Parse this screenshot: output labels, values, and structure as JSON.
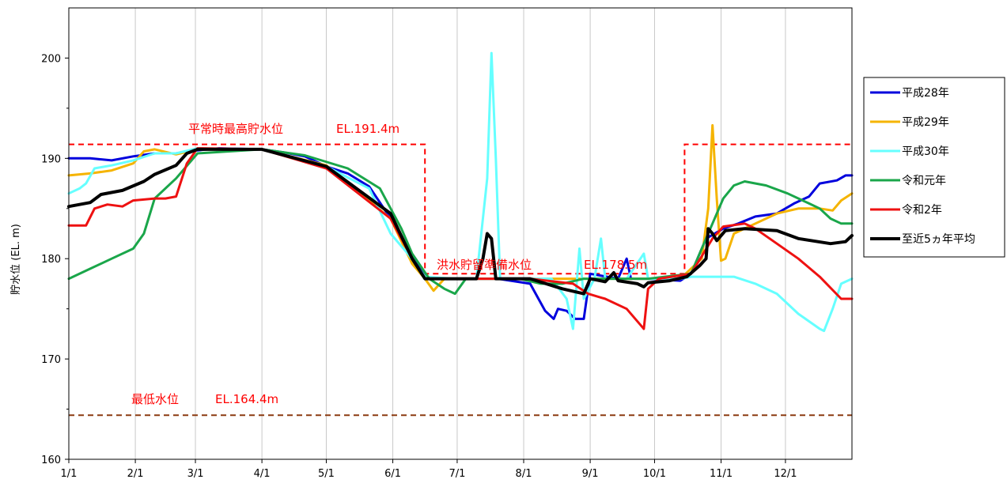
{
  "chart_data": {
    "type": "line",
    "ylabel": "貯水位 (EL. m)",
    "ylim": [
      160,
      205
    ],
    "yticks": [
      160,
      170,
      180,
      190,
      200
    ],
    "xlim": [
      0,
      365
    ],
    "xticks": [
      {
        "label": "1/1",
        "day": 0
      },
      {
        "label": "2/1",
        "day": 31
      },
      {
        "label": "3/1",
        "day": 59
      },
      {
        "label": "4/1",
        "day": 90
      },
      {
        "label": "5/1",
        "day": 120
      },
      {
        "label": "6/1",
        "day": 151
      },
      {
        "label": "7/1",
        "day": 181
      },
      {
        "label": "8/1",
        "day": 212
      },
      {
        "label": "9/1",
        "day": 243
      },
      {
        "label": "10/1",
        "day": 273
      },
      {
        "label": "11/1",
        "day": 304
      },
      {
        "label": "12/1",
        "day": 334
      }
    ],
    "grid": true,
    "legend_position": "right",
    "reference_lines": [
      {
        "label": "平常時最高貯水位",
        "value_label": "EL.191.4m",
        "color": "#ff0000",
        "points": [
          [
            0,
            191.4
          ],
          [
            166,
            191.4
          ],
          [
            166,
            178.5
          ],
          [
            287,
            178.5
          ],
          [
            287,
            191.4
          ],
          [
            365,
            191.4
          ]
        ]
      },
      {
        "label": "洪水貯留準備水位",
        "value_label": "EL.178.5m",
        "color": "#ff0000",
        "points": [
          [
            166,
            178.5
          ],
          [
            287,
            178.5
          ]
        ]
      },
      {
        "label": "最低水位",
        "value_label": "EL.164.4m",
        "color": "#8b3a10",
        "points": [
          [
            0,
            164.4
          ],
          [
            365,
            164.4
          ]
        ]
      }
    ],
    "series": [
      {
        "name": "平成28年",
        "color": "#0000dd",
        "width": 3,
        "points": [
          [
            0,
            190
          ],
          [
            10,
            190
          ],
          [
            20,
            189.8
          ],
          [
            30,
            190.2
          ],
          [
            40,
            190.5
          ],
          [
            50,
            190.5
          ],
          [
            60,
            190.8
          ],
          [
            70,
            191
          ],
          [
            90,
            190.9
          ],
          [
            100,
            190.6
          ],
          [
            110,
            190.2
          ],
          [
            120,
            189.2
          ],
          [
            130,
            188.5
          ],
          [
            140,
            187.2
          ],
          [
            150,
            184
          ],
          [
            158,
            181
          ],
          [
            166,
            178.2
          ],
          [
            175,
            178
          ],
          [
            185,
            178
          ],
          [
            200,
            178
          ],
          [
            215,
            177.5
          ],
          [
            222,
            174.8
          ],
          [
            226,
            174
          ],
          [
            228,
            175
          ],
          [
            232,
            174.8
          ],
          [
            236,
            174
          ],
          [
            240,
            174
          ],
          [
            243,
            178.5
          ],
          [
            256,
            178
          ],
          [
            260,
            180
          ],
          [
            262,
            178
          ],
          [
            270,
            178
          ],
          [
            285,
            177.8
          ],
          [
            290,
            178.5
          ],
          [
            297,
            182
          ],
          [
            305,
            183
          ],
          [
            312,
            183.5
          ],
          [
            320,
            184.2
          ],
          [
            330,
            184.5
          ],
          [
            338,
            185.5
          ],
          [
            345,
            186.2
          ],
          [
            350,
            187.5
          ],
          [
            358,
            187.8
          ],
          [
            362,
            188.3
          ],
          [
            365,
            188.3
          ]
        ]
      },
      {
        "name": "平成29年",
        "color": "#f5b400",
        "width": 3,
        "points": [
          [
            0,
            188.3
          ],
          [
            10,
            188.5
          ],
          [
            20,
            188.8
          ],
          [
            30,
            189.5
          ],
          [
            35,
            190.7
          ],
          [
            40,
            190.9
          ],
          [
            50,
            190.4
          ],
          [
            60,
            190.9
          ],
          [
            90,
            190.9
          ],
          [
            120,
            189.3
          ],
          [
            150,
            184
          ],
          [
            160,
            179.5
          ],
          [
            166,
            178
          ],
          [
            170,
            176.8
          ],
          [
            175,
            178
          ],
          [
            200,
            178
          ],
          [
            230,
            178
          ],
          [
            260,
            178
          ],
          [
            285,
            178
          ],
          [
            295,
            180
          ],
          [
            298,
            185
          ],
          [
            300,
            193.3
          ],
          [
            302,
            186
          ],
          [
            304,
            179.8
          ],
          [
            306,
            180
          ],
          [
            310,
            182.5
          ],
          [
            320,
            183.5
          ],
          [
            330,
            184.5
          ],
          [
            340,
            185
          ],
          [
            350,
            185
          ],
          [
            356,
            184.8
          ],
          [
            360,
            185.8
          ],
          [
            365,
            186.5
          ]
        ]
      },
      {
        "name": "平成30年",
        "color": "#66ffff",
        "width": 3,
        "points": [
          [
            0,
            186.5
          ],
          [
            5,
            187
          ],
          [
            8,
            187.5
          ],
          [
            12,
            189
          ],
          [
            20,
            189.3
          ],
          [
            30,
            189.8
          ],
          [
            40,
            190.5
          ],
          [
            50,
            190.5
          ],
          [
            60,
            191
          ],
          [
            90,
            190.9
          ],
          [
            120,
            189.2
          ],
          [
            140,
            187
          ],
          [
            150,
            182.5
          ],
          [
            158,
            180.5
          ],
          [
            166,
            178.2
          ],
          [
            180,
            178
          ],
          [
            190,
            178
          ],
          [
            195,
            188
          ],
          [
            197,
            200.5
          ],
          [
            199,
            190
          ],
          [
            201,
            178
          ],
          [
            210,
            178
          ],
          [
            225,
            178
          ],
          [
            232,
            176
          ],
          [
            235,
            173
          ],
          [
            238,
            181
          ],
          [
            240,
            176
          ],
          [
            245,
            178
          ],
          [
            248,
            182
          ],
          [
            250,
            178
          ],
          [
            260,
            178
          ],
          [
            268,
            180.5
          ],
          [
            270,
            178
          ],
          [
            285,
            178
          ],
          [
            290,
            178.2
          ],
          [
            300,
            178.2
          ],
          [
            310,
            178.2
          ],
          [
            320,
            177.5
          ],
          [
            330,
            176.5
          ],
          [
            340,
            174.5
          ],
          [
            350,
            173
          ],
          [
            352,
            172.8
          ],
          [
            356,
            175
          ],
          [
            360,
            177.5
          ],
          [
            365,
            178
          ]
        ]
      },
      {
        "name": "令和元年",
        "color": "#1aa64a",
        "width": 3,
        "points": [
          [
            0,
            178
          ],
          [
            10,
            179
          ],
          [
            20,
            180
          ],
          [
            30,
            181
          ],
          [
            35,
            182.5
          ],
          [
            40,
            186
          ],
          [
            50,
            188
          ],
          [
            60,
            190.5
          ],
          [
            90,
            190.9
          ],
          [
            110,
            190.3
          ],
          [
            130,
            189
          ],
          [
            145,
            187
          ],
          [
            155,
            183
          ],
          [
            160,
            180.5
          ],
          [
            168,
            178
          ],
          [
            175,
            177
          ],
          [
            180,
            176.5
          ],
          [
            185,
            178
          ],
          [
            200,
            178
          ],
          [
            210,
            178
          ],
          [
            220,
            177.5
          ],
          [
            230,
            177.5
          ],
          [
            240,
            178
          ],
          [
            260,
            178
          ],
          [
            270,
            178
          ],
          [
            290,
            178.5
          ],
          [
            295,
            181
          ],
          [
            300,
            183.5
          ],
          [
            305,
            186
          ],
          [
            310,
            187.3
          ],
          [
            315,
            187.7
          ],
          [
            325,
            187.3
          ],
          [
            335,
            186.5
          ],
          [
            345,
            185.5
          ],
          [
            350,
            185
          ],
          [
            355,
            184
          ],
          [
            360,
            183.5
          ],
          [
            365,
            183.5
          ]
        ]
      },
      {
        "name": "令和2年",
        "color": "#ee1111",
        "width": 3,
        "points": [
          [
            0,
            183.3
          ],
          [
            8,
            183.3
          ],
          [
            12,
            185
          ],
          [
            18,
            185.4
          ],
          [
            25,
            185.2
          ],
          [
            30,
            185.8
          ],
          [
            40,
            186
          ],
          [
            45,
            186
          ],
          [
            50,
            186.2
          ],
          [
            55,
            189.5
          ],
          [
            60,
            191
          ],
          [
            90,
            190.9
          ],
          [
            120,
            189
          ],
          [
            150,
            184
          ],
          [
            160,
            180
          ],
          [
            166,
            178
          ],
          [
            180,
            178
          ],
          [
            200,
            178
          ],
          [
            215,
            178
          ],
          [
            235,
            177.5
          ],
          [
            242,
            176.5
          ],
          [
            250,
            176
          ],
          [
            260,
            175
          ],
          [
            266,
            173.5
          ],
          [
            268,
            173
          ],
          [
            270,
            177
          ],
          [
            275,
            178
          ],
          [
            290,
            178.5
          ],
          [
            300,
            182
          ],
          [
            305,
            183.2
          ],
          [
            315,
            183.5
          ],
          [
            320,
            183
          ],
          [
            330,
            181.5
          ],
          [
            340,
            180
          ],
          [
            350,
            178.2
          ],
          [
            360,
            176
          ],
          [
            365,
            176
          ]
        ]
      },
      {
        "name": "至近5ヵ年平均",
        "color": "#000000",
        "width": 4,
        "points": [
          [
            0,
            185.2
          ],
          [
            10,
            185.6
          ],
          [
            15,
            186.4
          ],
          [
            25,
            186.8
          ],
          [
            35,
            187.7
          ],
          [
            40,
            188.4
          ],
          [
            50,
            189.3
          ],
          [
            55,
            190.5
          ],
          [
            60,
            190.9
          ],
          [
            90,
            190.9
          ],
          [
            120,
            189.2
          ],
          [
            150,
            184.5
          ],
          [
            160,
            180
          ],
          [
            166,
            178
          ],
          [
            180,
            178
          ],
          [
            190,
            178
          ],
          [
            193,
            180
          ],
          [
            195,
            182.5
          ],
          [
            197,
            182
          ],
          [
            199,
            178
          ],
          [
            215,
            178
          ],
          [
            230,
            177
          ],
          [
            240,
            176.5
          ],
          [
            243,
            178
          ],
          [
            250,
            177.7
          ],
          [
            254,
            178.6
          ],
          [
            256,
            177.8
          ],
          [
            265,
            177.5
          ],
          [
            268,
            177.2
          ],
          [
            270,
            177.6
          ],
          [
            280,
            177.8
          ],
          [
            288,
            178.2
          ],
          [
            294,
            179.3
          ],
          [
            297,
            180
          ],
          [
            298,
            183
          ],
          [
            300,
            182.5
          ],
          [
            302,
            181.8
          ],
          [
            306,
            182.8
          ],
          [
            315,
            183
          ],
          [
            330,
            182.8
          ],
          [
            340,
            182
          ],
          [
            355,
            181.5
          ],
          [
            362,
            181.7
          ],
          [
            365,
            182.3
          ]
        ]
      }
    ]
  }
}
